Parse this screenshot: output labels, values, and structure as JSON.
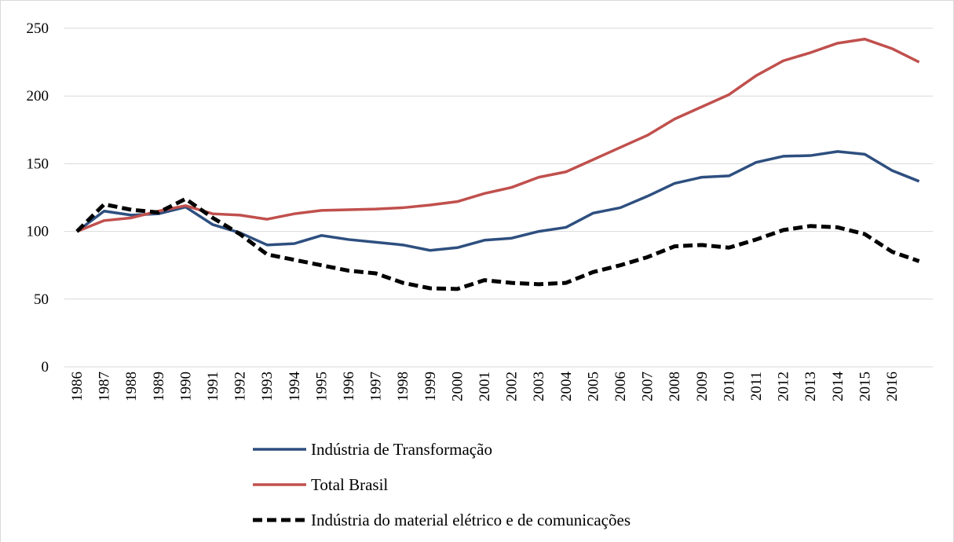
{
  "chart_data": {
    "type": "line",
    "categories": [
      "1986",
      "1987",
      "1988",
      "1989",
      "1990",
      "1991",
      "1992",
      "1993",
      "1994",
      "1995",
      "1996",
      "1997",
      "1998",
      "1999",
      "2000",
      "2001",
      "2002",
      "2003",
      "2004",
      "2005",
      "2006",
      "2007",
      "2008",
      "2009",
      "2010",
      "2011",
      "2012",
      "2013",
      "2014",
      "2015",
      "2016",
      null
    ],
    "series": [
      {
        "name": "Indústria de Transformação",
        "color": "#2e4f7f",
        "dash": false,
        "values": [
          100,
          115,
          112,
          113,
          118,
          105,
          99,
          90,
          91,
          97,
          94,
          92,
          90,
          86,
          88,
          93.5,
          95,
          100,
          103,
          113.5,
          117.5,
          126,
          135.5,
          140,
          141,
          151,
          155.5,
          156,
          159,
          157,
          145,
          137
        ]
      },
      {
        "name": "Total Brasil",
        "color": "#c0504d",
        "dash": false,
        "values": [
          100,
          108,
          110,
          115,
          119,
          113,
          112,
          109,
          113,
          115.5,
          116,
          116.5,
          117.5,
          119.5,
          122,
          128,
          132.5,
          140,
          144,
          153,
          162,
          171,
          183,
          192,
          201,
          215,
          226,
          232,
          239,
          242,
          235,
          225
        ]
      },
      {
        "name": "Indústria do material elétrico e de comunicações",
        "color": "#000000",
        "dash": true,
        "values": [
          100,
          120,
          116,
          114,
          124,
          110,
          98,
          83,
          79,
          75,
          71,
          69,
          62,
          58,
          57.5,
          64,
          62,
          61,
          62,
          70,
          75,
          81,
          89,
          90,
          88,
          94,
          101,
          104,
          103,
          98,
          85,
          78
        ]
      }
    ],
    "ylim": [
      0,
      250
    ],
    "yticks": [
      0,
      50,
      100,
      150,
      200,
      250
    ],
    "grid": true,
    "legend": "bottom"
  }
}
